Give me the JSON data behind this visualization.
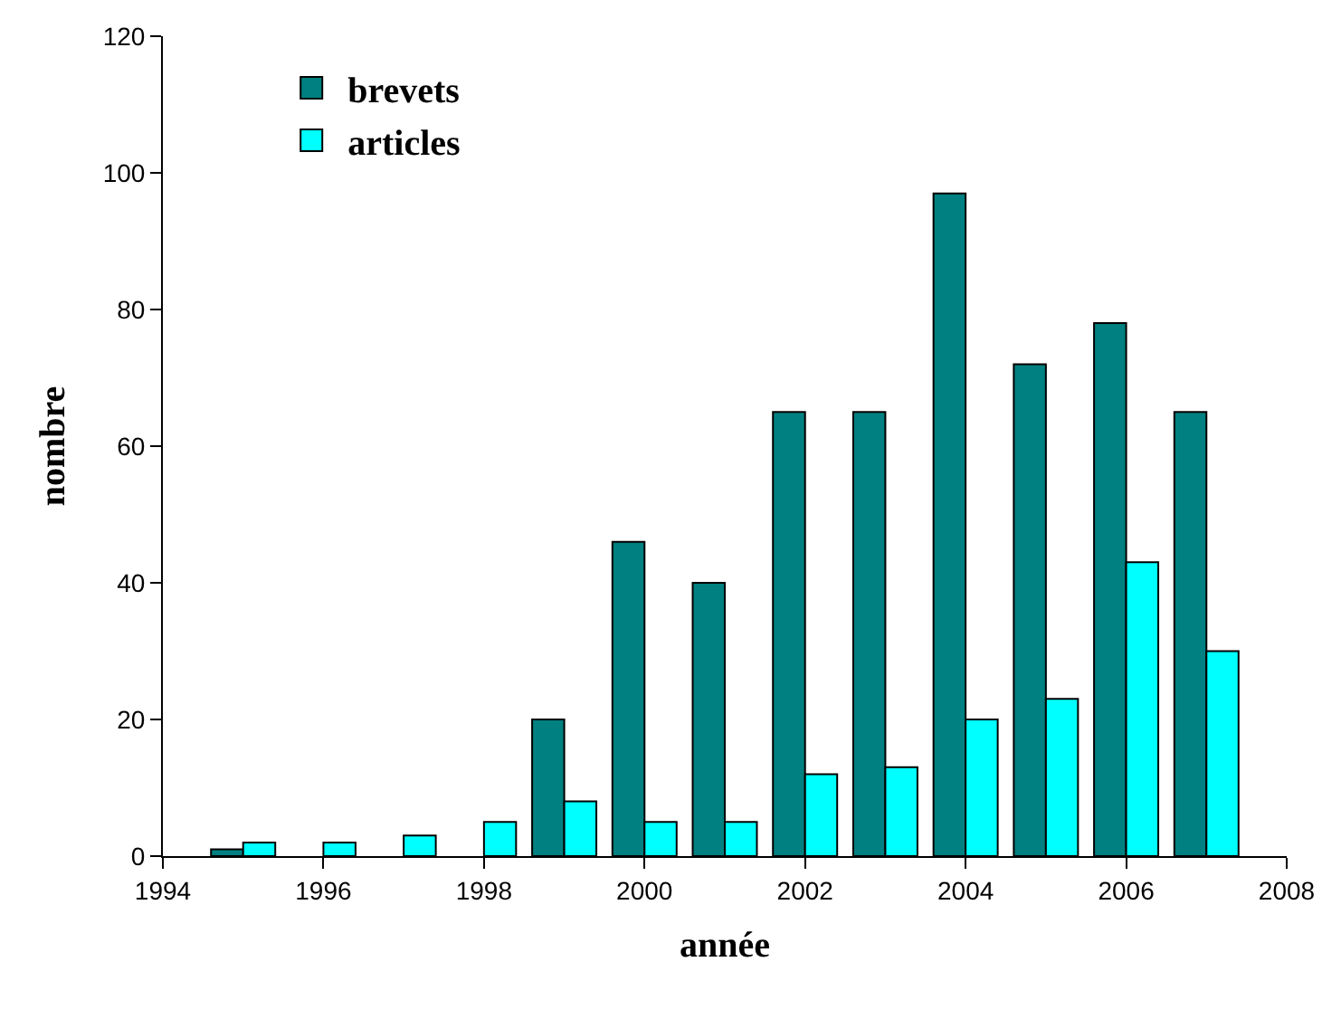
{
  "chart_data": {
    "type": "bar",
    "xlabel": "année",
    "ylabel": "nombre",
    "x": [
      1995,
      1996,
      1997,
      1998,
      1999,
      2000,
      2001,
      2002,
      2003,
      2004,
      2005,
      2006,
      2007
    ],
    "series": [
      {
        "name": "brevets",
        "color": "#008080",
        "values": [
          1,
          0,
          0,
          0,
          20,
          46,
          40,
          65,
          65,
          97,
          72,
          78,
          65
        ]
      },
      {
        "name": "articles",
        "color": "#00ffff",
        "values": [
          2,
          2,
          3,
          5,
          8,
          5,
          5,
          12,
          13,
          20,
          23,
          43,
          30
        ]
      }
    ],
    "xlim": [
      1994,
      2008
    ],
    "xticks": [
      1994,
      1996,
      1998,
      2000,
      2002,
      2004,
      2006,
      2008
    ],
    "ylim": [
      0,
      120
    ],
    "yticks": [
      0,
      20,
      40,
      60,
      80,
      100,
      120
    ],
    "legend": "top left"
  }
}
